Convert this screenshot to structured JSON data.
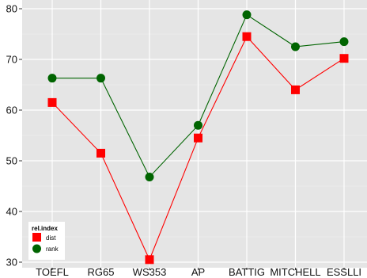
{
  "chart_data": {
    "type": "line",
    "title": "",
    "xlabel": "",
    "ylabel": "",
    "categories": [
      "TOEFL",
      "RG65",
      "WS353",
      "AP",
      "BATTIG",
      "MITCHELL",
      "ESSLLI"
    ],
    "ylim": [
      30,
      80
    ],
    "yticks": [
      30,
      40,
      50,
      60,
      70,
      80
    ],
    "grid": true,
    "legend": {
      "title": "rel.index",
      "position": "bottom-left"
    },
    "series": [
      {
        "name": "dist",
        "color": "#ff0000",
        "marker": "square",
        "values": [
          61.5,
          51.5,
          30.5,
          54.5,
          74.5,
          64.0,
          70.2
        ]
      },
      {
        "name": "rank",
        "color": "#006400",
        "marker": "circle",
        "values": [
          66.3,
          66.3,
          46.8,
          57.0,
          78.8,
          72.5,
          73.5
        ]
      }
    ]
  }
}
